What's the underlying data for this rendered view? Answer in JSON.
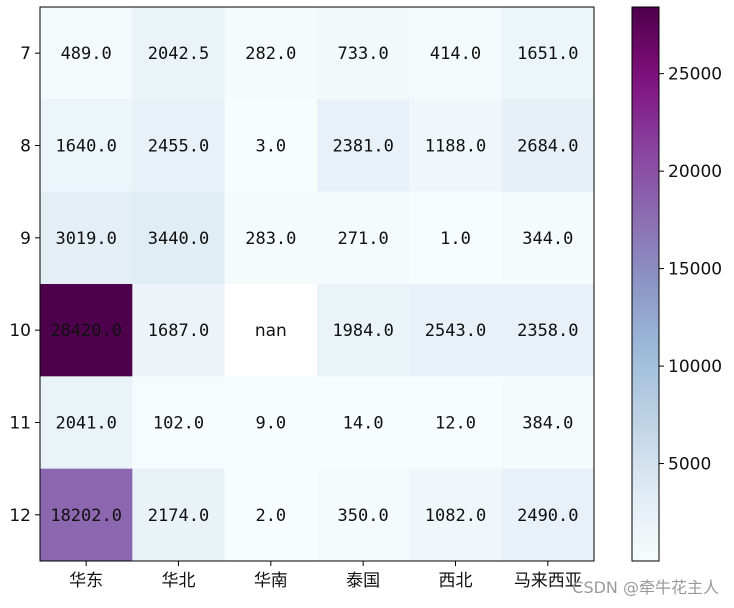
{
  "chart_data": {
    "type": "heatmap",
    "x_categories": [
      "华东",
      "华北",
      "华南",
      "泰国",
      "西北",
      "马来西亚"
    ],
    "y_categories": [
      "7",
      "8",
      "9",
      "10",
      "11",
      "12"
    ],
    "values": [
      [
        489.0,
        2042.5,
        282.0,
        733.0,
        414.0,
        1651.0
      ],
      [
        1640.0,
        2455.0,
        3.0,
        2381.0,
        1188.0,
        2684.0
      ],
      [
        3019.0,
        3440.0,
        283.0,
        271.0,
        1.0,
        344.0
      ],
      [
        28420.0,
        1687.0,
        null,
        1984.0,
        2543.0,
        2358.0
      ],
      [
        2041.0,
        102.0,
        9.0,
        14.0,
        12.0,
        384.0
      ],
      [
        18202.0,
        2174.0,
        2.0,
        350.0,
        1082.0,
        2490.0
      ]
    ],
    "cell_labels": [
      [
        "489.0",
        "2042.5",
        "282.0",
        "733.0",
        "414.0",
        "1651.0"
      ],
      [
        "1640.0",
        "2455.0",
        "3.0",
        "2381.0",
        "1188.0",
        "2684.0"
      ],
      [
        "3019.0",
        "3440.0",
        "283.0",
        "271.0",
        "1.0",
        "344.0"
      ],
      [
        "28420.0",
        "1687.0",
        "nan",
        "1984.0",
        "2543.0",
        "2358.0"
      ],
      [
        "2041.0",
        "102.0",
        "9.0",
        "14.0",
        "12.0",
        "384.0"
      ],
      [
        "18202.0",
        "2174.0",
        "2.0",
        "350.0",
        "1082.0",
        "2490.0"
      ]
    ],
    "colormap": "BuPu",
    "color_range": [
      1.0,
      28420.0
    ],
    "colorbar_ticks": [
      5000,
      10000,
      15000,
      20000,
      25000
    ],
    "colorbar_tick_labels": [
      "5000",
      "10000",
      "15000",
      "20000",
      "25000"
    ],
    "missing_value_color": "#ffffff",
    "title": "",
    "xlabel": "",
    "ylabel": ""
  },
  "watermark": "CSDN @牵牛花主人"
}
